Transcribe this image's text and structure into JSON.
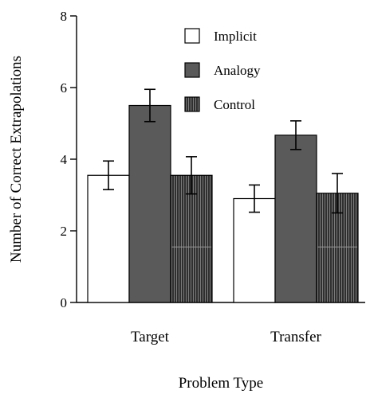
{
  "chart_data": {
    "type": "bar",
    "title": "",
    "xlabel": "Problem Type",
    "ylabel": "Number of Correct Extrapolations",
    "categories": [
      "Target",
      "Transfer"
    ],
    "ylim": [
      0,
      8
    ],
    "yticks": [
      "0",
      "2",
      "4",
      "6",
      "8"
    ],
    "grid": false,
    "legend_position": "top-center",
    "series": [
      {
        "name": "Implicit",
        "values": [
          3.55,
          2.9
        ],
        "errors": [
          0.4,
          0.38
        ],
        "fill": "#ffffff",
        "pattern": "none"
      },
      {
        "name": "Analogy",
        "values": [
          5.5,
          4.67
        ],
        "errors": [
          0.45,
          0.4
        ],
        "fill": "#5a5a5a",
        "pattern": "none"
      },
      {
        "name": "Control",
        "values": [
          3.55,
          3.05
        ],
        "errors": [
          0.52,
          0.55
        ],
        "fill": "#3a3a3a",
        "pattern": "vertical-stripes"
      }
    ]
  }
}
